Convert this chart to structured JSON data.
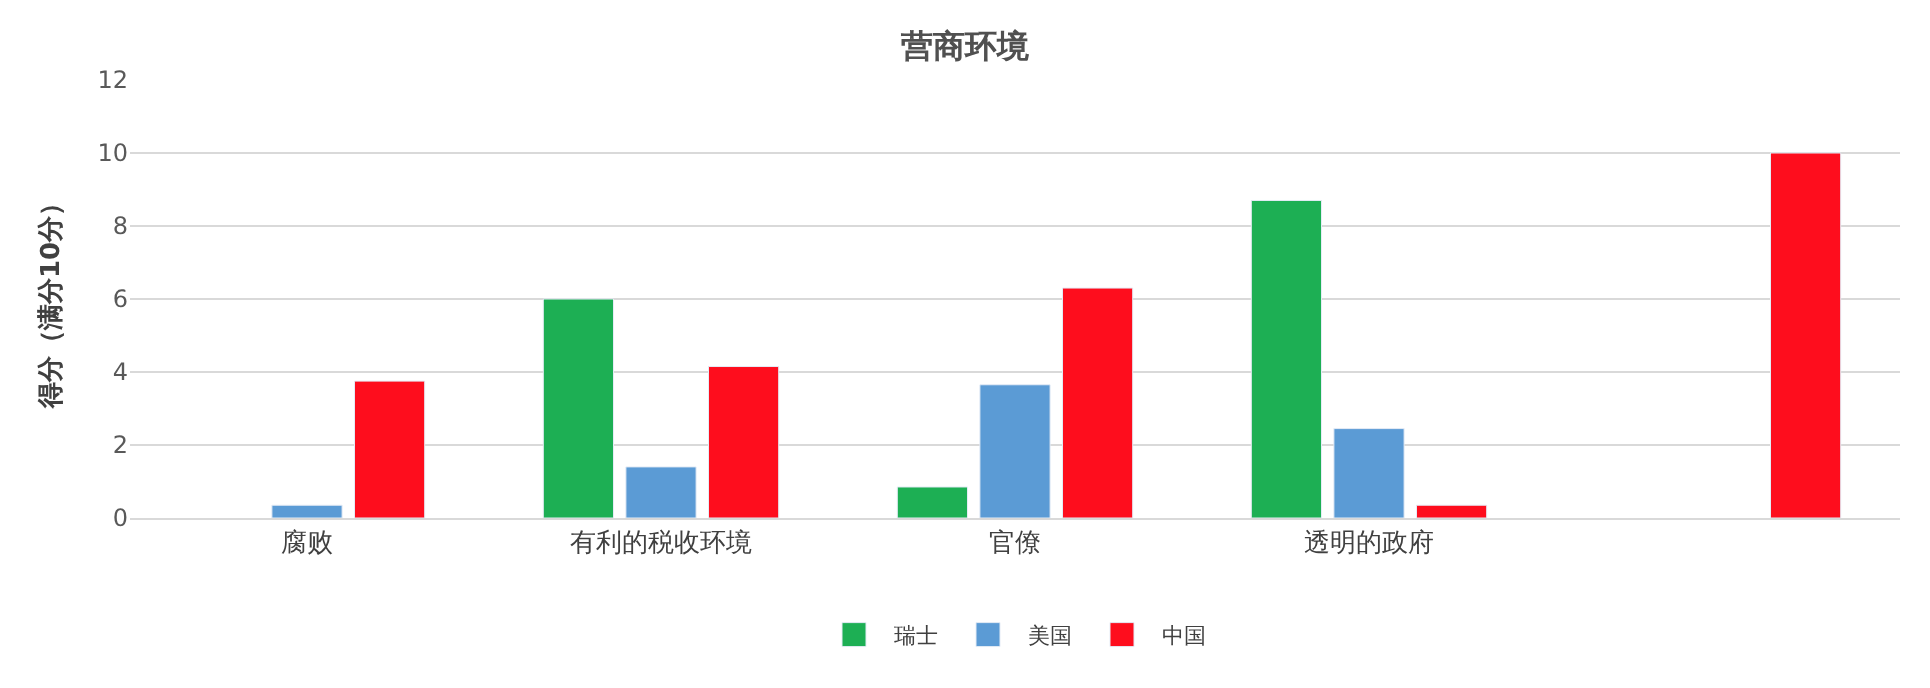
{
  "chart_data": {
    "type": "bar",
    "title": "营商环境",
    "ylabel": "得分（满分10分）",
    "categories": [
      "腐败",
      "有利的税收环境",
      "官僚",
      "透明的政府",
      null
    ],
    "series": [
      {
        "name": "瑞士",
        "color": "#1daf54",
        "values": [
          null,
          6.0,
          0.85,
          8.7,
          null
        ]
      },
      {
        "name": "美国",
        "color": "#5b9bd5",
        "values": [
          0.35,
          1.4,
          3.65,
          2.45,
          null
        ]
      },
      {
        "name": "中国",
        "color": "#fe0d1d",
        "values": [
          3.75,
          4.15,
          6.3,
          0.35,
          10.0
        ]
      }
    ],
    "ylim": [
      0,
      12
    ],
    "yticks": [
      0,
      2,
      4,
      6,
      8,
      10,
      12
    ],
    "grid": "y",
    "legend": "bottom"
  }
}
